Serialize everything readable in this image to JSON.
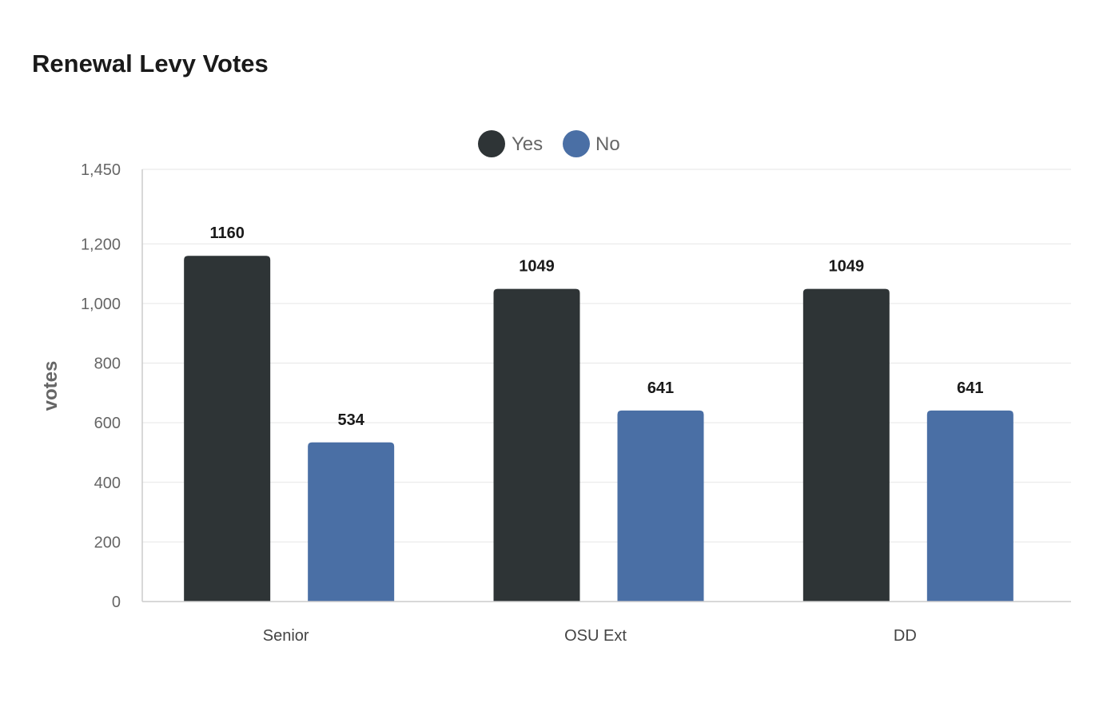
{
  "chart_data": {
    "type": "bar",
    "title": "Renewal Levy Votes",
    "xlabel": "",
    "ylabel": "votes",
    "categories": [
      "Senior",
      "OSU Ext",
      "DD"
    ],
    "series": [
      {
        "name": "Yes",
        "color": "#2e3436",
        "values": [
          1160,
          1049,
          1049
        ]
      },
      {
        "name": "No",
        "color": "#4a6fa5",
        "values": [
          534,
          641,
          641
        ]
      }
    ],
    "ylim": [
      0,
      1450
    ],
    "yticks": [
      0,
      200,
      400,
      600,
      800,
      1000,
      1200,
      1450
    ],
    "ytick_labels": [
      "0",
      "200",
      "400",
      "600",
      "800",
      "1,000",
      "1,200",
      "1,450"
    ],
    "grid": true,
    "legend_position": "top-center",
    "data_labels": true
  }
}
